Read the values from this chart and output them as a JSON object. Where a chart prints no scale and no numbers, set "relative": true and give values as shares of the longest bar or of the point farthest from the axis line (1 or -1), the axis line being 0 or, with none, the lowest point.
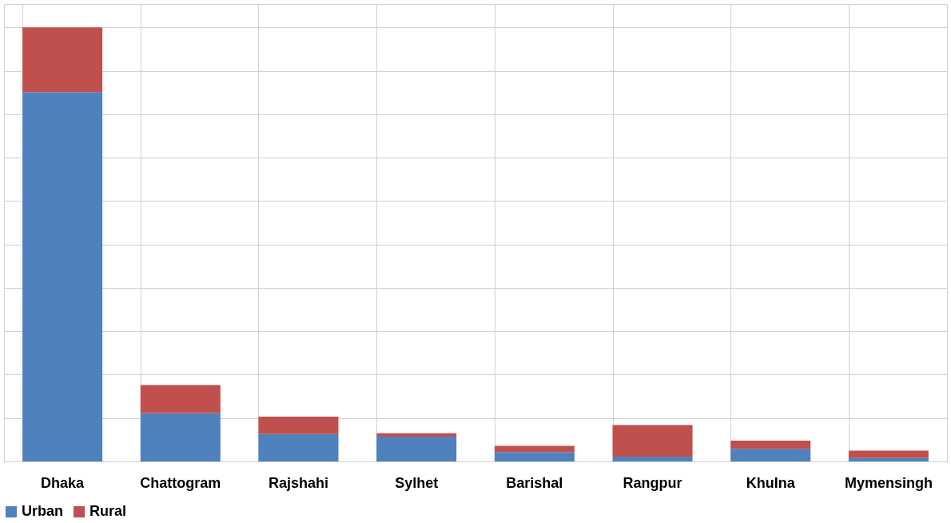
{
  "chart_data": {
    "type": "bar",
    "stacked": true,
    "relative": true,
    "grid": true,
    "legend": "bottom",
    "categories": [
      "Dhaka",
      "Chattogram",
      "Rajshahi",
      "Sylhet",
      "Barishal",
      "Rangpur",
      "Khulna",
      "Mymensingh"
    ],
    "series": [
      {
        "name": "Urban",
        "color": "#4f81bd",
        "values": [
          0.851,
          0.111,
          0.063,
          0.057,
          0.021,
          0.011,
          0.029,
          0.008
        ]
      },
      {
        "name": "Rural",
        "color": "#c0504d",
        "values": [
          0.149,
          0.065,
          0.04,
          0.008,
          0.015,
          0.073,
          0.019,
          0.017
        ]
      }
    ]
  }
}
